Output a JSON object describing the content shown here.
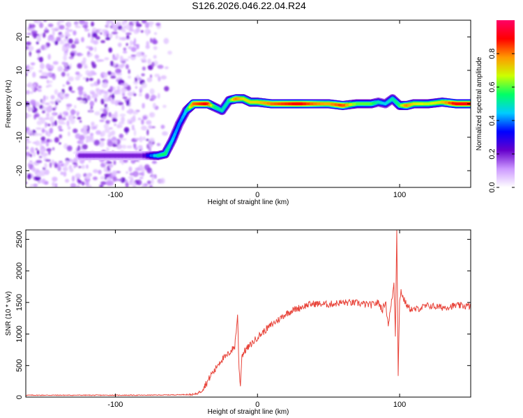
{
  "figure": {
    "title": "S126.2026.046.22.04.R24"
  },
  "chart_data": [
    {
      "type": "heatmap",
      "xlabel": "Height of straight line (km)",
      "ylabel": "Frequency (Hz)",
      "xlim": [
        -163,
        150
      ],
      "ylim": [
        -25,
        25
      ],
      "xticks": [
        -100,
        0,
        100
      ],
      "xtick_labels": [
        "-100",
        "0",
        "100"
      ],
      "yticks": [
        -20,
        -10,
        0,
        10,
        20
      ],
      "ytick_labels": [
        "-20",
        "-10",
        "0",
        "10",
        "20"
      ],
      "colorbar": {
        "label": "Normalized spectral amplitude",
        "range": [
          0.0,
          1.0
        ],
        "ticks": [
          0.0,
          0.2,
          0.4,
          0.6,
          0.8
        ],
        "tick_labels": [
          "0.0",
          "0.2",
          "0.4",
          "0.6",
          "0.8"
        ],
        "colors": [
          "#ffffff",
          "#cc99ff",
          "#6600cc",
          "#0000ff",
          "#00ccff",
          "#00ff66",
          "#ccff00",
          "#ff9900",
          "#ff0000",
          "#ff0066"
        ]
      },
      "noise_region": {
        "x": [
          -163,
          -60
        ],
        "description_level": 0.15
      },
      "ridge": {
        "x": [
          -125,
          -115,
          -100,
          -90,
          -80,
          -70,
          -65,
          -60,
          -55,
          -50,
          -45,
          -40,
          -35,
          -30,
          -25,
          -20,
          -15,
          -10,
          -5,
          0,
          10,
          20,
          30,
          40,
          50,
          60,
          70,
          80,
          85,
          90,
          95,
          100,
          105,
          110,
          120,
          130,
          140,
          150
        ],
        "y": [
          -15.5,
          -15.5,
          -15.5,
          -15.5,
          -15.5,
          -15.5,
          -15,
          -11,
          -6,
          -2,
          0,
          0,
          0,
          -1,
          -2,
          1,
          1.5,
          1.5,
          0.5,
          0.5,
          0,
          0,
          0,
          0,
          0,
          -0.5,
          0,
          0,
          0.5,
          0,
          1.5,
          -0.5,
          -0.5,
          0,
          0,
          0.5,
          0,
          0
        ],
        "amplitude": [
          0.2,
          0.2,
          0.2,
          0.2,
          0.2,
          0.5,
          0.55,
          0.45,
          0.4,
          0.45,
          0.8,
          0.85,
          0.9,
          0.55,
          0.5,
          0.5,
          0.8,
          0.7,
          0.7,
          0.7,
          0.8,
          0.85,
          0.9,
          0.8,
          0.75,
          0.85,
          0.6,
          0.6,
          0.5,
          0.45,
          0.5,
          0.55,
          0.8,
          0.7,
          0.65,
          0.7,
          0.9,
          0.9
        ]
      }
    },
    {
      "type": "line",
      "xlabel": "Height of straight line (km)",
      "ylabel": "SNR (10 * v/v)",
      "xlim": [
        -163,
        150
      ],
      "ylim": [
        0,
        2650
      ],
      "xticks": [
        -100,
        0,
        100
      ],
      "xtick_labels": [
        "-100",
        "0",
        "100"
      ],
      "yticks": [
        0,
        500,
        1000,
        1500,
        2000,
        2500
      ],
      "ytick_labels": [
        "0",
        "500",
        "1000",
        "1500",
        "2000",
        "2500"
      ],
      "series": [
        {
          "color": "#e8443a",
          "x": [
            -163,
            -140,
            -120,
            -100,
            -80,
            -60,
            -50,
            -45,
            -42,
            -40,
            -38,
            -35,
            -32,
            -30,
            -28,
            -25,
            -22,
            -20,
            -18,
            -16,
            -14,
            -13,
            -12,
            -11,
            -10,
            -8,
            -6,
            -4,
            -2,
            0,
            5,
            10,
            15,
            20,
            25,
            30,
            35,
            40,
            50,
            60,
            70,
            80,
            85,
            88,
            90,
            92,
            94,
            96,
            97,
            98,
            99,
            100,
            101,
            102,
            104,
            106,
            110,
            120,
            130,
            140,
            150
          ],
          "y": [
            30,
            30,
            30,
            30,
            30,
            35,
            40,
            40,
            60,
            100,
            160,
            250,
            380,
            420,
            520,
            600,
            640,
            700,
            750,
            800,
            1300,
            450,
            200,
            650,
            700,
            760,
            800,
            850,
            900,
            950,
            1050,
            1150,
            1230,
            1320,
            1380,
            1420,
            1460,
            1480,
            1470,
            1500,
            1490,
            1460,
            1500,
            1380,
            1520,
            1150,
            1450,
            1800,
            1000,
            2650,
            380,
            1500,
            1700,
            1600,
            1500,
            1420,
            1380,
            1450,
            1420,
            1450,
            1440
          ]
        }
      ]
    }
  ]
}
